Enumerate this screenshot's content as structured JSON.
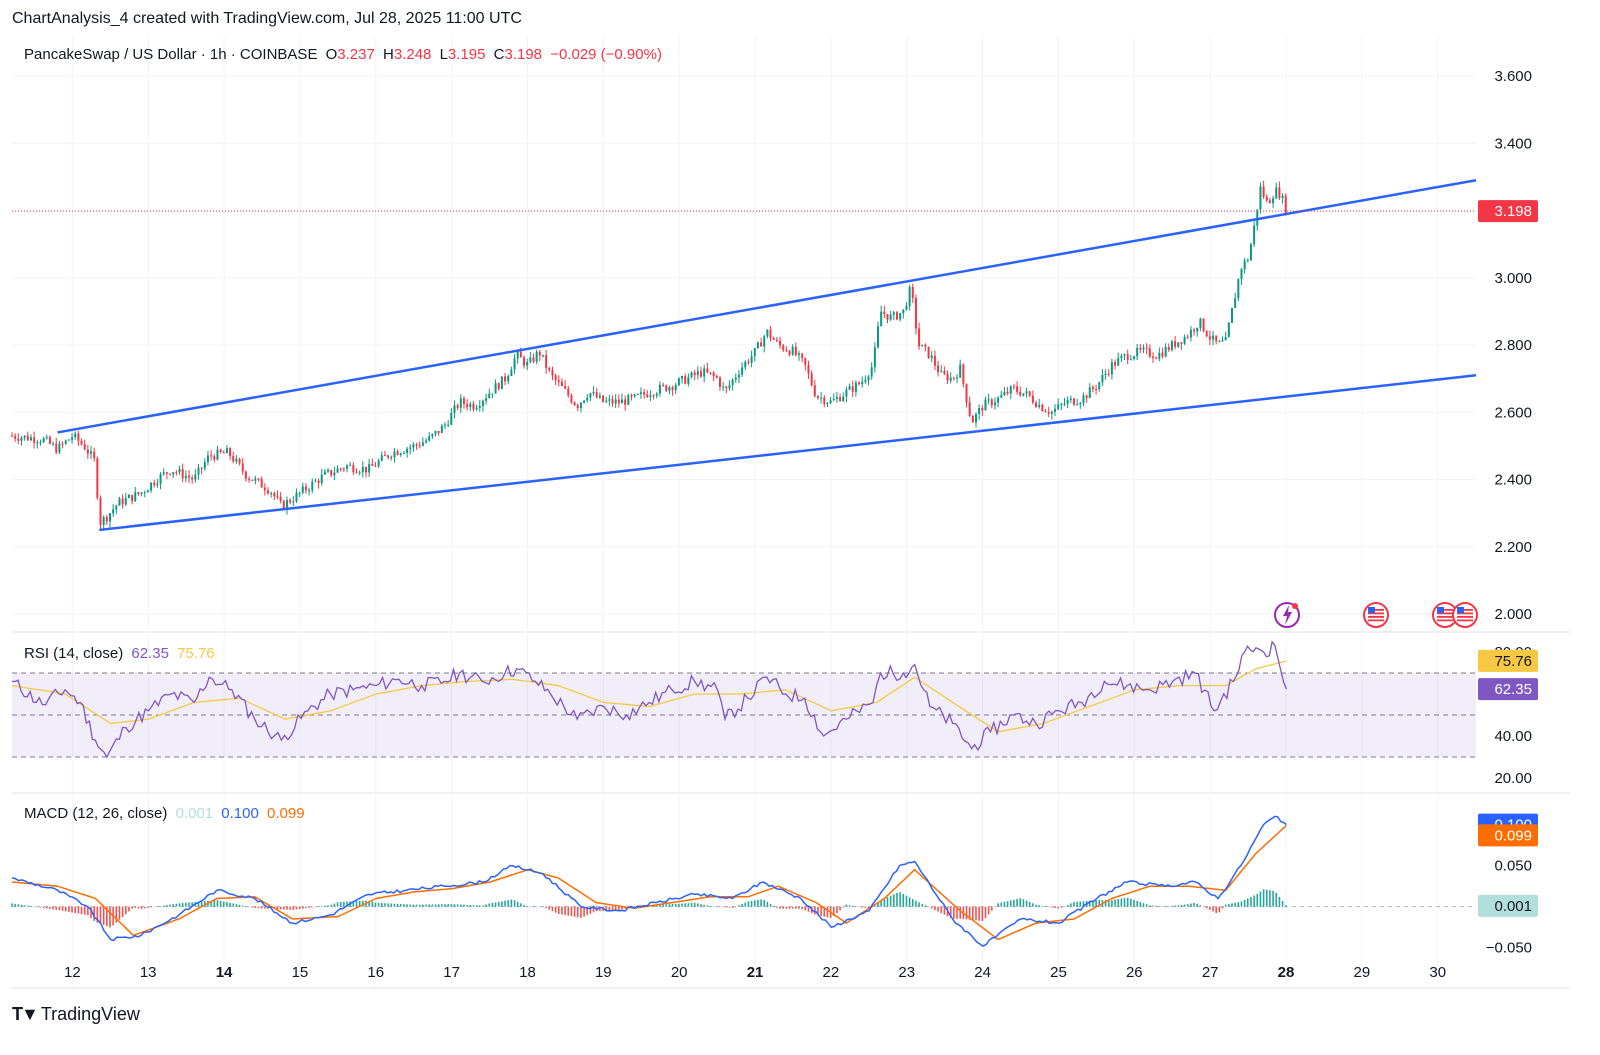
{
  "header": {
    "caption": "ChartAnalysis_4 created with TradingView.com, Jul 28, 2025 11:00 UTC"
  },
  "main": {
    "title": "PancakeSwap / US Dollar · 1h · COINBASE",
    "o_label": "O",
    "o_value": "3.237",
    "h_label": "H",
    "h_value": "3.248",
    "l_label": "L",
    "l_value": "3.195",
    "c_label": "C",
    "c_value": "3.198",
    "change": "−0.029 (−0.90%)",
    "last_price": "3.198",
    "colors": {
      "up": "#089981",
      "down": "#f23645",
      "channel": "#2962ff",
      "grid": "#f0f3fa"
    }
  },
  "rsi": {
    "label": "RSI (14, close)",
    "rsi_value": "62.35",
    "ma_value": "75.76",
    "colors": {
      "rsi": "#7e57c2",
      "ma": "#f7c843"
    }
  },
  "macd": {
    "label": "MACD (12, 26, close)",
    "hist_value": "0.001",
    "macd_value": "0.100",
    "signal_value": "0.099",
    "colors": {
      "hist_up": "#26a69a",
      "hist_down": "#ef5350",
      "macd": "#2962ff",
      "signal": "#ff6d00",
      "hist_label": "#b2dfdb"
    }
  },
  "footer": {
    "brand": "TradingView",
    "logo": "tradingview-logo"
  },
  "events": [
    "lightning-event-icon",
    "us-flag-event-icon",
    "us-flag-event-icon",
    "us-flag-event-icon"
  ],
  "chart_data": [
    {
      "type": "candlestick",
      "title": "PancakeSwap / US Dollar · 1h · COINBASE",
      "x_ticks": [
        "12",
        "13",
        "14",
        "15",
        "16",
        "17",
        "18",
        "19",
        "20",
        "21",
        "22",
        "23",
        "24",
        "25",
        "26",
        "27",
        "28",
        "29",
        "30"
      ],
      "bold_ticks": [
        "14",
        "21",
        "28"
      ],
      "y_ticks": [
        "2.000",
        "2.200",
        "2.400",
        "2.600",
        "2.800",
        "3.000",
        "3.200",
        "3.400",
        "3.600"
      ],
      "ylim": [
        2.0,
        3.6
      ],
      "xlim_days": [
        11.6,
        30.9
      ],
      "path_points": [
        [
          11.6,
          2.53
        ],
        [
          12.0,
          2.52
        ],
        [
          12.2,
          2.49
        ],
        [
          12.4,
          2.53
        ],
        [
          12.55,
          2.5
        ],
        [
          12.7,
          2.45
        ],
        [
          12.75,
          2.27
        ],
        [
          12.85,
          2.29
        ],
        [
          13.0,
          2.33
        ],
        [
          13.3,
          2.36
        ],
        [
          13.5,
          2.4
        ],
        [
          13.7,
          2.43
        ],
        [
          14.0,
          2.4
        ],
        [
          14.2,
          2.47
        ],
        [
          14.45,
          2.48
        ],
        [
          14.7,
          2.41
        ],
        [
          15.0,
          2.37
        ],
        [
          15.15,
          2.32
        ],
        [
          15.4,
          2.36
        ],
        [
          15.7,
          2.41
        ],
        [
          16.0,
          2.44
        ],
        [
          16.3,
          2.43
        ],
        [
          16.6,
          2.48
        ],
        [
          16.9,
          2.5
        ],
        [
          17.1,
          2.52
        ],
        [
          17.3,
          2.56
        ],
        [
          17.5,
          2.63
        ],
        [
          17.7,
          2.62
        ],
        [
          17.9,
          2.66
        ],
        [
          18.1,
          2.7
        ],
        [
          18.25,
          2.77
        ],
        [
          18.4,
          2.74
        ],
        [
          18.55,
          2.78
        ],
        [
          18.7,
          2.71
        ],
        [
          18.9,
          2.66
        ],
        [
          19.05,
          2.62
        ],
        [
          19.2,
          2.66
        ],
        [
          19.4,
          2.63
        ],
        [
          19.6,
          2.63
        ],
        [
          19.8,
          2.64
        ],
        [
          20.0,
          2.66
        ],
        [
          20.3,
          2.68
        ],
        [
          20.5,
          2.7
        ],
        [
          20.7,
          2.72
        ],
        [
          20.9,
          2.7
        ],
        [
          21.0,
          2.66
        ],
        [
          21.2,
          2.73
        ],
        [
          21.4,
          2.78
        ],
        [
          21.55,
          2.84
        ],
        [
          21.7,
          2.8
        ],
        [
          21.9,
          2.78
        ],
        [
          22.05,
          2.74
        ],
        [
          22.2,
          2.65
        ],
        [
          22.4,
          2.63
        ],
        [
          22.6,
          2.66
        ],
        [
          22.8,
          2.69
        ],
        [
          22.95,
          2.74
        ],
        [
          23.05,
          2.9
        ],
        [
          23.2,
          2.88
        ],
        [
          23.35,
          2.9
        ],
        [
          23.45,
          2.97
        ],
        [
          23.55,
          2.8
        ],
        [
          23.7,
          2.77
        ],
        [
          23.85,
          2.71
        ],
        [
          24.0,
          2.7
        ],
        [
          24.1,
          2.73
        ],
        [
          24.25,
          2.57
        ],
        [
          24.4,
          2.62
        ],
        [
          24.6,
          2.64
        ],
        [
          24.8,
          2.67
        ],
        [
          25.0,
          2.65
        ],
        [
          25.15,
          2.62
        ],
        [
          25.3,
          2.6
        ],
        [
          25.5,
          2.63
        ],
        [
          25.7,
          2.64
        ],
        [
          25.9,
          2.68
        ],
        [
          26.1,
          2.74
        ],
        [
          26.3,
          2.77
        ],
        [
          26.5,
          2.78
        ],
        [
          26.7,
          2.77
        ],
        [
          26.9,
          2.8
        ],
        [
          27.1,
          2.83
        ],
        [
          27.25,
          2.87
        ],
        [
          27.4,
          2.82
        ],
        [
          27.5,
          2.8
        ],
        [
          27.6,
          2.81
        ],
        [
          27.7,
          2.92
        ],
        [
          27.8,
          3.03
        ],
        [
          27.9,
          3.06
        ],
        [
          28.0,
          3.18
        ],
        [
          28.05,
          3.27
        ],
        [
          28.15,
          3.22
        ],
        [
          28.25,
          3.26
        ],
        [
          28.32,
          3.25
        ],
        [
          28.4,
          3.2
        ]
      ],
      "channel_upper": [
        [
          12.2,
          2.54
        ],
        [
          30.9,
          3.29
        ]
      ],
      "channel_lower": [
        [
          12.75,
          2.25
        ],
        [
          30.9,
          2.71
        ]
      ],
      "last_price": 3.198
    },
    {
      "type": "line",
      "title": "RSI (14, close)",
      "y_ticks": [
        "20.00",
        "40.00",
        "80.00"
      ],
      "ylim": [
        20,
        80
      ],
      "bands": [
        30,
        50,
        70
      ],
      "rsi_points": [
        [
          11.6,
          66
        ],
        [
          12.0,
          55
        ],
        [
          12.3,
          62
        ],
        [
          12.5,
          56
        ],
        [
          12.7,
          38
        ],
        [
          12.85,
          30
        ],
        [
          13.1,
          44
        ],
        [
          13.4,
          52
        ],
        [
          13.7,
          60
        ],
        [
          14.0,
          56
        ],
        [
          14.2,
          68
        ],
        [
          14.5,
          62
        ],
        [
          14.8,
          48
        ],
        [
          15.15,
          38
        ],
        [
          15.5,
          52
        ],
        [
          15.8,
          60
        ],
        [
          16.1,
          62
        ],
        [
          16.4,
          64
        ],
        [
          16.7,
          67
        ],
        [
          17.0,
          64
        ],
        [
          17.3,
          66
        ],
        [
          17.5,
          70
        ],
        [
          17.8,
          66
        ],
        [
          18.1,
          70
        ],
        [
          18.25,
          72
        ],
        [
          18.5,
          66
        ],
        [
          18.7,
          60
        ],
        [
          19.05,
          48
        ],
        [
          19.4,
          54
        ],
        [
          19.7,
          50
        ],
        [
          20.0,
          56
        ],
        [
          20.3,
          62
        ],
        [
          20.6,
          66
        ],
        [
          20.9,
          62
        ],
        [
          21.0,
          48
        ],
        [
          21.3,
          58
        ],
        [
          21.55,
          68
        ],
        [
          21.8,
          60
        ],
        [
          22.05,
          58
        ],
        [
          22.3,
          40
        ],
        [
          22.6,
          48
        ],
        [
          22.95,
          56
        ],
        [
          23.05,
          70
        ],
        [
          23.35,
          70
        ],
        [
          23.5,
          74
        ],
        [
          23.7,
          54
        ],
        [
          24.0,
          46
        ],
        [
          24.25,
          34
        ],
        [
          24.5,
          42
        ],
        [
          24.8,
          50
        ],
        [
          25.1,
          46
        ],
        [
          25.4,
          52
        ],
        [
          25.7,
          56
        ],
        [
          26.0,
          66
        ],
        [
          26.3,
          64
        ],
        [
          26.6,
          62
        ],
        [
          26.9,
          66
        ],
        [
          27.2,
          70
        ],
        [
          27.45,
          52
        ],
        [
          27.7,
          66
        ],
        [
          27.85,
          80
        ],
        [
          28.0,
          82
        ],
        [
          28.1,
          80
        ],
        [
          28.25,
          83
        ],
        [
          28.4,
          62.35
        ]
      ],
      "ma_points": [
        [
          11.6,
          64
        ],
        [
          12.3,
          60
        ],
        [
          12.9,
          46
        ],
        [
          13.4,
          48
        ],
        [
          14.0,
          56
        ],
        [
          14.6,
          58
        ],
        [
          15.2,
          48
        ],
        [
          15.8,
          52
        ],
        [
          16.4,
          60
        ],
        [
          17.0,
          64
        ],
        [
          17.6,
          66
        ],
        [
          18.2,
          67
        ],
        [
          18.8,
          64
        ],
        [
          19.4,
          56
        ],
        [
          20.0,
          54
        ],
        [
          20.6,
          60
        ],
        [
          21.2,
          60
        ],
        [
          21.8,
          62
        ],
        [
          22.4,
          52
        ],
        [
          23.0,
          56
        ],
        [
          23.5,
          68
        ],
        [
          24.0,
          56
        ],
        [
          24.6,
          42
        ],
        [
          25.2,
          46
        ],
        [
          25.8,
          54
        ],
        [
          26.4,
          62
        ],
        [
          27.0,
          64
        ],
        [
          27.6,
          64
        ],
        [
          28.0,
          72
        ],
        [
          28.4,
          75.76
        ]
      ]
    },
    {
      "type": "line",
      "title": "MACD (12, 26, close)",
      "y_ticks": [
        "−0.050",
        "0.050"
      ],
      "ylim": [
        -0.065,
        0.13
      ],
      "macd_points": [
        [
          11.6,
          0.035
        ],
        [
          12.2,
          0.02
        ],
        [
          12.6,
          0.0
        ],
        [
          12.9,
          -0.04
        ],
        [
          13.3,
          -0.035
        ],
        [
          13.8,
          -0.01
        ],
        [
          14.3,
          0.02
        ],
        [
          14.8,
          0.01
        ],
        [
          15.3,
          -0.02
        ],
        [
          15.8,
          -0.01
        ],
        [
          16.3,
          0.015
        ],
        [
          16.8,
          0.02
        ],
        [
          17.3,
          0.025
        ],
        [
          17.8,
          0.03
        ],
        [
          18.2,
          0.05
        ],
        [
          18.6,
          0.04
        ],
        [
          19.1,
          0.0
        ],
        [
          19.6,
          -0.005
        ],
        [
          20.1,
          0.005
        ],
        [
          20.6,
          0.015
        ],
        [
          21.1,
          0.01
        ],
        [
          21.5,
          0.03
        ],
        [
          22.0,
          0.01
        ],
        [
          22.4,
          -0.025
        ],
        [
          22.9,
          -0.005
        ],
        [
          23.3,
          0.05
        ],
        [
          23.5,
          0.055
        ],
        [
          24.0,
          -0.015
        ],
        [
          24.4,
          -0.048
        ],
        [
          24.9,
          -0.015
        ],
        [
          25.4,
          -0.02
        ],
        [
          25.9,
          0.01
        ],
        [
          26.3,
          0.03
        ],
        [
          26.8,
          0.025
        ],
        [
          27.2,
          0.03
        ],
        [
          27.5,
          0.01
        ],
        [
          27.8,
          0.05
        ],
        [
          28.1,
          0.1
        ],
        [
          28.25,
          0.11
        ],
        [
          28.4,
          0.1
        ]
      ],
      "signal_points": [
        [
          11.6,
          0.03
        ],
        [
          12.2,
          0.025
        ],
        [
          12.7,
          0.01
        ],
        [
          13.2,
          -0.035
        ],
        [
          13.8,
          -0.015
        ],
        [
          14.3,
          0.01
        ],
        [
          14.8,
          0.012
        ],
        [
          15.3,
          -0.015
        ],
        [
          15.9,
          -0.012
        ],
        [
          16.4,
          0.01
        ],
        [
          16.9,
          0.018
        ],
        [
          17.4,
          0.022
        ],
        [
          17.9,
          0.03
        ],
        [
          18.4,
          0.045
        ],
        [
          18.8,
          0.035
        ],
        [
          19.3,
          0.005
        ],
        [
          19.8,
          -0.002
        ],
        [
          20.3,
          0.005
        ],
        [
          20.8,
          0.012
        ],
        [
          21.3,
          0.012
        ],
        [
          21.7,
          0.025
        ],
        [
          22.2,
          0.005
        ],
        [
          22.6,
          -0.02
        ],
        [
          23.1,
          0.01
        ],
        [
          23.5,
          0.045
        ],
        [
          24.1,
          -0.005
        ],
        [
          24.6,
          -0.04
        ],
        [
          25.1,
          -0.02
        ],
        [
          25.6,
          -0.015
        ],
        [
          26.1,
          0.01
        ],
        [
          26.6,
          0.025
        ],
        [
          27.1,
          0.025
        ],
        [
          27.6,
          0.02
        ],
        [
          28.0,
          0.065
        ],
        [
          28.4,
          0.099
        ]
      ],
      "last_values": {
        "hist": 0.001,
        "macd": 0.1,
        "signal": 0.099
      }
    }
  ]
}
